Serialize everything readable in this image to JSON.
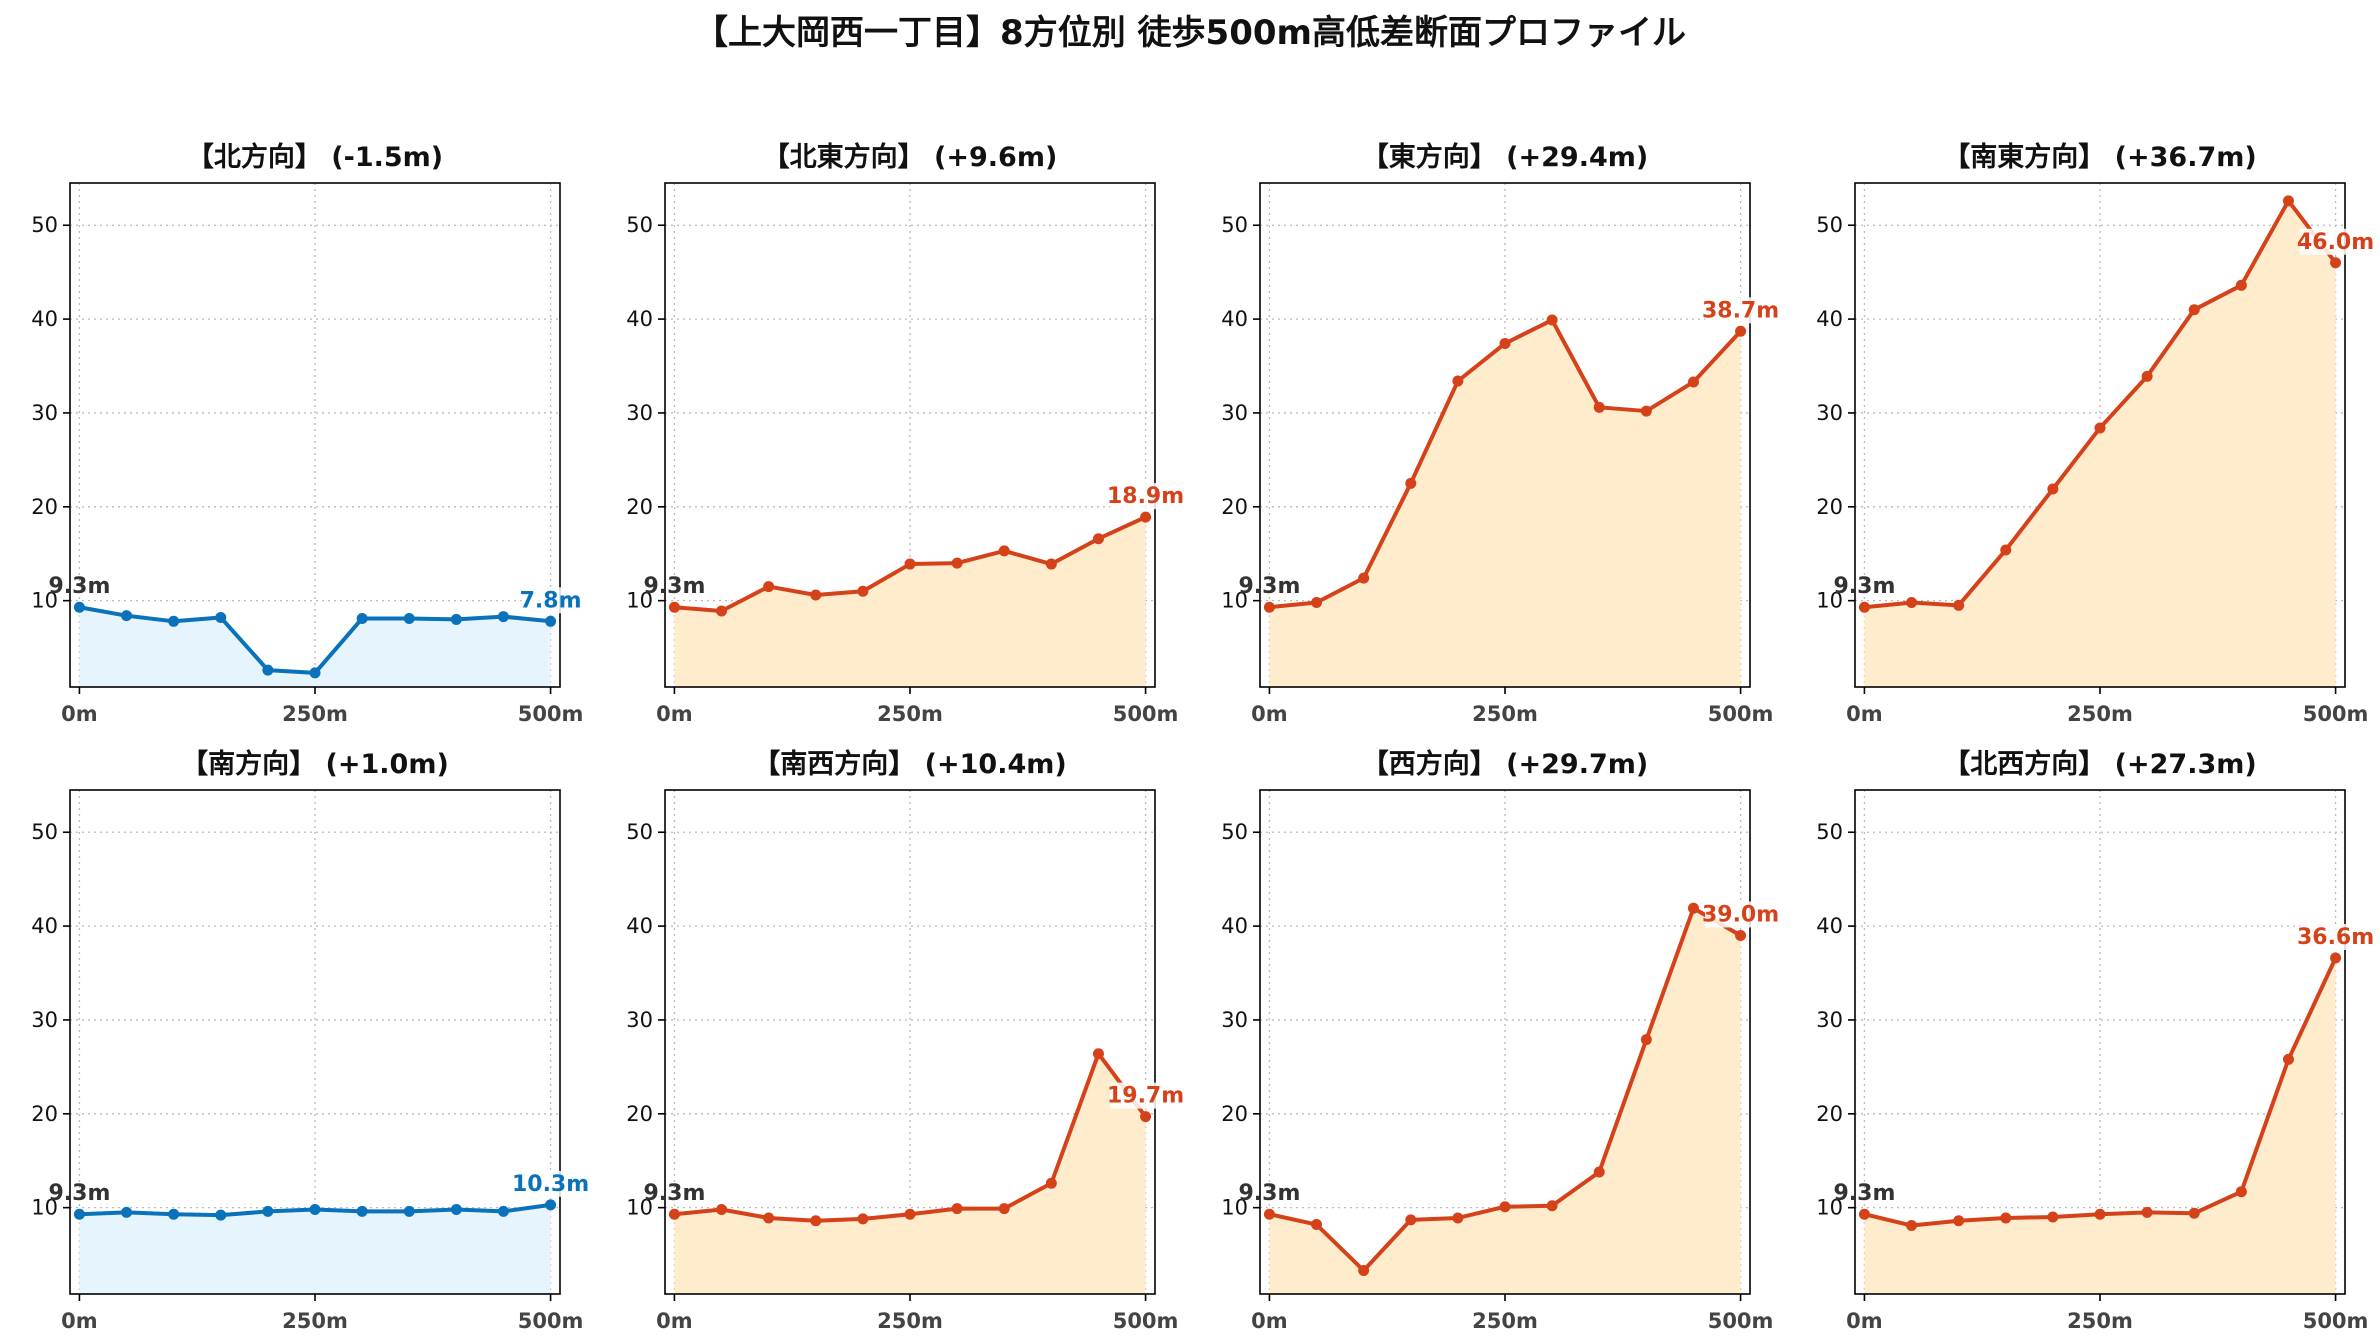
{
  "title": "【上大岡西一丁目】8方位別 徒歩500m高低差断面プロファイル",
  "colors": {
    "down": "#0a72ba",
    "up": "#d5421a",
    "down_fill": "#e5f4fd",
    "up_fill": "#ffeccc",
    "start_label": "#333333"
  },
  "chart_data": [
    {
      "type": "area",
      "title": "【北方向】 (-1.5m)",
      "trend": "down",
      "x": [
        0,
        50,
        100,
        150,
        200,
        250,
        300,
        350,
        400,
        450,
        500
      ],
      "y": [
        9.3,
        8.4,
        7.8,
        8.2,
        2.6,
        2.3,
        8.1,
        8.1,
        8.0,
        8.3,
        7.8
      ],
      "start_label": "9.3m",
      "end_label": "7.8m",
      "xticks": [
        0,
        250,
        500
      ],
      "xtick_labels": [
        "0m",
        "250m",
        "500m"
      ],
      "yticks": [
        10,
        20,
        30,
        40,
        50
      ],
      "ylim": [
        0.8,
        54.5
      ],
      "xlim": [
        -10,
        510
      ],
      "grid": true
    },
    {
      "type": "area",
      "title": "【北東方向】 (+9.6m)",
      "trend": "up",
      "x": [
        0,
        50,
        100,
        150,
        200,
        250,
        300,
        350,
        400,
        450,
        500
      ],
      "y": [
        9.3,
        8.9,
        11.5,
        10.6,
        11.0,
        13.9,
        14.0,
        15.3,
        13.9,
        16.6,
        18.9
      ],
      "start_label": "9.3m",
      "end_label": "18.9m",
      "xticks": [
        0,
        250,
        500
      ],
      "xtick_labels": [
        "0m",
        "250m",
        "500m"
      ],
      "yticks": [
        10,
        20,
        30,
        40,
        50
      ],
      "ylim": [
        0.8,
        54.5
      ],
      "xlim": [
        -10,
        510
      ],
      "grid": true
    },
    {
      "type": "area",
      "title": "【東方向】 (+29.4m)",
      "trend": "up",
      "x": [
        0,
        50,
        100,
        150,
        200,
        250,
        300,
        350,
        400,
        450,
        500
      ],
      "y": [
        9.3,
        9.8,
        12.4,
        22.5,
        33.4,
        37.4,
        39.9,
        30.6,
        30.2,
        33.3,
        38.7
      ],
      "start_label": "9.3m",
      "end_label": "38.7m",
      "xticks": [
        0,
        250,
        500
      ],
      "xtick_labels": [
        "0m",
        "250m",
        "500m"
      ],
      "yticks": [
        10,
        20,
        30,
        40,
        50
      ],
      "ylim": [
        0.8,
        54.5
      ],
      "xlim": [
        -10,
        510
      ],
      "grid": true
    },
    {
      "type": "area",
      "title": "【南東方向】 (+36.7m)",
      "trend": "up",
      "x": [
        0,
        50,
        100,
        150,
        200,
        250,
        300,
        350,
        400,
        450,
        500
      ],
      "y": [
        9.3,
        9.8,
        9.5,
        15.4,
        21.9,
        28.4,
        33.9,
        41.0,
        43.6,
        52.6,
        46.0
      ],
      "start_label": "9.3m",
      "end_label": "46.0m",
      "xticks": [
        0,
        250,
        500
      ],
      "xtick_labels": [
        "0m",
        "250m",
        "500m"
      ],
      "yticks": [
        10,
        20,
        30,
        40,
        50
      ],
      "ylim": [
        0.8,
        54.5
      ],
      "xlim": [
        -10,
        510
      ],
      "grid": true
    },
    {
      "type": "area",
      "title": "【南方向】 (+1.0m)",
      "trend": "down",
      "x": [
        0,
        50,
        100,
        150,
        200,
        250,
        300,
        350,
        400,
        450,
        500
      ],
      "y": [
        9.3,
        9.5,
        9.3,
        9.2,
        9.6,
        9.8,
        9.6,
        9.6,
        9.8,
        9.6,
        10.3
      ],
      "start_label": "9.3m",
      "end_label": "10.3m",
      "xticks": [
        0,
        250,
        500
      ],
      "xtick_labels": [
        "0m",
        "250m",
        "500m"
      ],
      "yticks": [
        10,
        20,
        30,
        40,
        50
      ],
      "ylim": [
        0.8,
        54.5
      ],
      "xlim": [
        -10,
        510
      ],
      "grid": true
    },
    {
      "type": "area",
      "title": "【南西方向】 (+10.4m)",
      "trend": "up",
      "x": [
        0,
        50,
        100,
        150,
        200,
        250,
        300,
        350,
        400,
        450,
        500
      ],
      "y": [
        9.3,
        9.8,
        8.9,
        8.6,
        8.8,
        9.3,
        9.9,
        9.9,
        12.6,
        26.4,
        19.7
      ],
      "start_label": "9.3m",
      "end_label": "19.7m",
      "xticks": [
        0,
        250,
        500
      ],
      "xtick_labels": [
        "0m",
        "250m",
        "500m"
      ],
      "yticks": [
        10,
        20,
        30,
        40,
        50
      ],
      "ylim": [
        0.8,
        54.5
      ],
      "xlim": [
        -10,
        510
      ],
      "grid": true
    },
    {
      "type": "area",
      "title": "【西方向】 (+29.7m)",
      "trend": "up",
      "x": [
        0,
        50,
        100,
        150,
        200,
        250,
        300,
        350,
        400,
        450,
        500
      ],
      "y": [
        9.3,
        8.2,
        3.3,
        8.7,
        8.9,
        10.1,
        10.2,
        13.8,
        27.9,
        41.9,
        39.0
      ],
      "start_label": "9.3m",
      "end_label": "39.0m",
      "xticks": [
        0,
        250,
        500
      ],
      "xtick_labels": [
        "0m",
        "250m",
        "500m"
      ],
      "yticks": [
        10,
        20,
        30,
        40,
        50
      ],
      "ylim": [
        0.8,
        54.5
      ],
      "xlim": [
        -10,
        510
      ],
      "grid": true
    },
    {
      "type": "area",
      "title": "【北西方向】 (+27.3m)",
      "trend": "up",
      "x": [
        0,
        50,
        100,
        150,
        200,
        250,
        300,
        350,
        400,
        450,
        500
      ],
      "y": [
        9.3,
        8.1,
        8.6,
        8.9,
        9.0,
        9.3,
        9.5,
        9.4,
        11.7,
        25.8,
        36.6
      ],
      "start_label": "9.3m",
      "end_label": "36.6m",
      "xticks": [
        0,
        250,
        500
      ],
      "xtick_labels": [
        "0m",
        "250m",
        "500m"
      ],
      "yticks": [
        10,
        20,
        30,
        40,
        50
      ],
      "ylim": [
        0.8,
        54.5
      ],
      "xlim": [
        -10,
        510
      ],
      "grid": true
    }
  ]
}
